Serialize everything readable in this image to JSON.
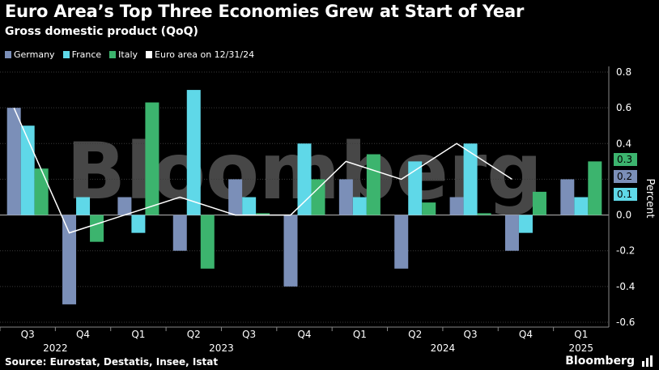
{
  "title": "Euro Area’s Top Three Economies Grew at Start of Year",
  "subtitle": "Gross domestic product (QoQ)",
  "source": "Source: Eurostat, Destatis, Insee, Istat",
  "brand": "Bloomberg",
  "watermark": "Bloomberg",
  "chart_data": {
    "type": "bar",
    "title": "Euro Area’s Top Three Economies Grew at Start of Year",
    "subtitle": "Gross domestic product (QoQ)",
    "ylabel": "Percent",
    "ylim": [
      -0.6,
      0.8
    ],
    "yticks": [
      "0.8",
      "0.6",
      "0.4",
      "0.2",
      "0.0",
      "-0.2",
      "-0.4",
      "-0.6"
    ],
    "ytick_values": [
      0.8,
      0.6,
      0.4,
      0.2,
      0.0,
      -0.2,
      -0.4,
      -0.6
    ],
    "categories": [
      "Q3",
      "Q4",
      "Q1",
      "Q2",
      "Q3",
      "Q4",
      "Q1",
      "Q2",
      "Q3",
      "Q4",
      "Q1"
    ],
    "years": [
      {
        "label": "2022",
        "start": 0,
        "end": 1
      },
      {
        "label": "2023",
        "start": 2,
        "end": 5
      },
      {
        "label": "2024",
        "start": 6,
        "end": 9
      },
      {
        "label": "2025",
        "start": 10,
        "end": 10
      }
    ],
    "series": [
      {
        "name": "Germany",
        "color": "#7b8fb8",
        "values": [
          0.6,
          -0.5,
          0.1,
          -0.2,
          0.2,
          -0.4,
          0.2,
          -0.3,
          0.1,
          -0.2,
          0.2
        ]
      },
      {
        "name": "France",
        "color": "#5fd8e8",
        "values": [
          0.5,
          0.1,
          -0.1,
          0.7,
          0.1,
          0.4,
          0.1,
          0.3,
          0.4,
          -0.1,
          0.1
        ]
      },
      {
        "name": "Italy",
        "color": "#3cb46e",
        "values": [
          0.26,
          -0.15,
          0.63,
          -0.3,
          0.01,
          0.2,
          0.34,
          0.07,
          0.01,
          0.13,
          0.3
        ]
      }
    ],
    "line_series": {
      "name": "Euro area on 12/31/24",
      "color": "#ffffff",
      "values": [
        0.6,
        -0.1,
        0.0,
        0.1,
        0.0,
        0.0,
        0.3,
        0.2,
        0.4,
        0.2,
        null
      ]
    },
    "end_labels": [
      {
        "text": "0.3",
        "color": "#3cb46e"
      },
      {
        "text": "0.2",
        "color": "#7b8fb8"
      },
      {
        "text": "0.1",
        "color": "#5fd8e8"
      }
    ],
    "legend_position": "top-left",
    "grid": true
  }
}
